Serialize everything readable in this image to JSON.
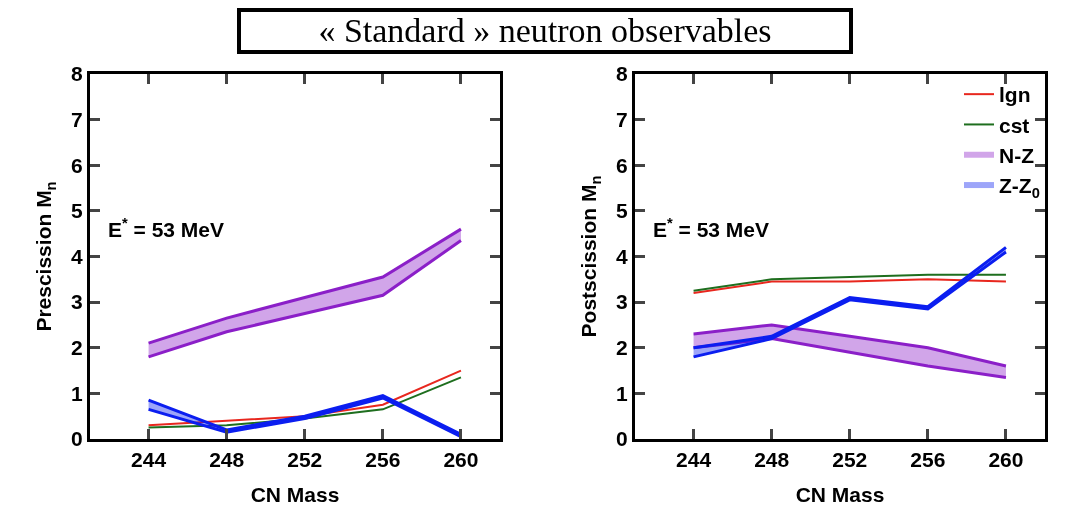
{
  "chart_data": [
    {
      "type": "line",
      "title": "« Standard » neutron observables",
      "xlabel": "CN Mass",
      "ylabel": "Prescission M$_{n}$",
      "annotations": [
        "E$^{*}$ = 53 MeV"
      ],
      "x": [
        244,
        248,
        252,
        256,
        260
      ],
      "xlim": [
        241,
        262
      ],
      "xticks": [
        244,
        248,
        252,
        256,
        260
      ],
      "ylim": [
        0,
        8
      ],
      "yticks": [
        0,
        1,
        2,
        3,
        4,
        5,
        6,
        7,
        8
      ],
      "grid": false,
      "legend": false,
      "series": [
        {
          "color": "#e8271e",
          "values": [
            0.3,
            0.4,
            0.5,
            0.75,
            1.5
          ]
        },
        {
          "color": "#1e6e1e",
          "values": [
            0.25,
            0.3,
            0.45,
            0.65,
            1.35
          ]
        },
        {
          "color": "#8b1fc8",
          "values": [
            2.1,
            2.65,
            3.1,
            3.55,
            4.6
          ],
          "lower": [
            1.8,
            2.35,
            2.75,
            3.15,
            4.35
          ],
          "upper": [
            2.1,
            2.65,
            3.1,
            3.55,
            4.6
          ]
        },
        {
          "color": "#8b1fc8",
          "values": [
            1.8,
            2.35,
            2.75,
            3.15,
            4.35
          ]
        },
        {
          "color": "#0b1ef0",
          "values": [
            0.85,
            0.2,
            0.5,
            0.95,
            0.1
          ],
          "lower": [
            0.65,
            0.15,
            0.45,
            0.9,
            0.05
          ],
          "upper": [
            0.85,
            0.2,
            0.5,
            0.95,
            0.1
          ]
        },
        {
          "color": "#0b1ef0",
          "values": [
            0.65,
            0.15,
            0.45,
            0.9,
            0.05
          ]
        }
      ]
    },
    {
      "type": "line",
      "xlabel": "CN Mass",
      "ylabel": "Postscission M$_{n}$",
      "annotations": [
        "E$^{*}$ = 53 MeV"
      ],
      "x": [
        244,
        248,
        252,
        256,
        260
      ],
      "xlim": [
        241,
        262
      ],
      "xticks": [
        244,
        248,
        252,
        256,
        260
      ],
      "ylim": [
        0,
        8
      ],
      "yticks": [
        0,
        1,
        2,
        3,
        4,
        5,
        6,
        7,
        8
      ],
      "grid": false,
      "legend": "top right",
      "series": [
        {
          "name": "lgn",
          "color": "#e8271e",
          "values": [
            3.2,
            3.45,
            3.45,
            3.5,
            3.45
          ]
        },
        {
          "name": "cst",
          "color": "#1e6e1e",
          "values": [
            3.25,
            3.5,
            3.55,
            3.6,
            3.6
          ]
        },
        {
          "name": "N-Z",
          "color": "#8b1fc8",
          "values": [
            2.3,
            2.5,
            2.25,
            2.0,
            1.6
          ],
          "lower": [
            2.0,
            2.2,
            1.9,
            1.6,
            1.35
          ],
          "upper": [
            2.3,
            2.5,
            2.25,
            2.0,
            1.6
          ]
        },
        {
          "color": "#8b1fc8",
          "values": [
            2.0,
            2.2,
            1.9,
            1.6,
            1.35
          ]
        },
        {
          "name": "Z-Z$_{0}$",
          "color": "#0b1ef0",
          "values": [
            2.0,
            2.25,
            3.1,
            2.9,
            4.2
          ],
          "lower": [
            1.8,
            2.2,
            3.05,
            2.85,
            4.1
          ],
          "upper": [
            2.0,
            2.25,
            3.1,
            2.9,
            4.2
          ]
        },
        {
          "color": "#0b1ef0",
          "values": [
            1.8,
            2.2,
            3.05,
            2.85,
            4.1
          ]
        }
      ]
    }
  ]
}
